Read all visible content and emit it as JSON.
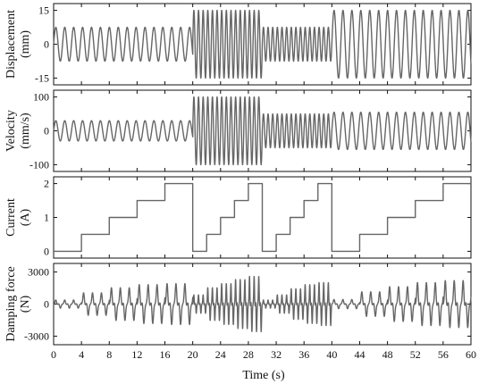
{
  "chart_data": {
    "type": "line",
    "xlabel": "Time (s)",
    "xlim": [
      0,
      60
    ],
    "x_ticks": [
      0,
      4,
      8,
      12,
      16,
      20,
      24,
      28,
      32,
      36,
      40,
      44,
      48,
      52,
      56,
      60
    ],
    "panels": [
      {
        "ylabel_line1": "Displacement",
        "ylabel_line2": "(mm)",
        "ylim": [
          -18,
          18
        ],
        "y_ticks": [
          -15,
          0,
          15
        ],
        "series": [
          {
            "segments": [
              {
                "t": [
                  0,
                  20
                ],
                "freq_hz": 0.78,
                "amp": 7.5
              },
              {
                "t": [
                  20,
                  30
                ],
                "freq_hz": 1.5,
                "amp": 15
              },
              {
                "t": [
                  30,
                  38
                ],
                "freq_hz": 1.5,
                "amp": 7.5
              },
              {
                "t": [
                  38,
                  40
                ],
                "freq_hz": 1.5,
                "amp": 7.5
              },
              {
                "t": [
                  40,
                  60
                ],
                "freq_hz": 0.78,
                "amp": 15
              }
            ]
          }
        ]
      },
      {
        "ylabel_line1": "Velocity",
        "ylabel_line2": "(mm/s)",
        "ylim": [
          -120,
          120
        ],
        "y_ticks": [
          -100,
          0,
          100
        ],
        "series": [
          {
            "segments": [
              {
                "t": [
                  0,
                  20
                ],
                "freq_hz": 0.78,
                "amp": 30
              },
              {
                "t": [
                  20,
                  30
                ],
                "freq_hz": 1.5,
                "amp": 100
              },
              {
                "t": [
                  30,
                  40
                ],
                "freq_hz": 1.5,
                "amp": 50
              },
              {
                "t": [
                  40,
                  60
                ],
                "freq_hz": 0.78,
                "amp": 55
              }
            ]
          }
        ]
      },
      {
        "ylabel_line1": "Current",
        "ylabel_line2": "(A)",
        "ylim": [
          -0.2,
          2.2
        ],
        "y_ticks": [
          0,
          1,
          2
        ],
        "series": [
          {
            "steps": [
              {
                "t": [
                  0,
                  4
                ],
                "value": 0
              },
              {
                "t": [
                  4,
                  8
                ],
                "value": 0.5
              },
              {
                "t": [
                  8,
                  12
                ],
                "value": 1
              },
              {
                "t": [
                  12,
                  16
                ],
                "value": 1.5
              },
              {
                "t": [
                  16,
                  20
                ],
                "value": 2
              },
              {
                "t": [
                  20,
                  22
                ],
                "value": 0
              },
              {
                "t": [
                  22,
                  24
                ],
                "value": 0.5
              },
              {
                "t": [
                  24,
                  26
                ],
                "value": 1
              },
              {
                "t": [
                  26,
                  28
                ],
                "value": 1.5
              },
              {
                "t": [
                  28,
                  30
                ],
                "value": 2
              },
              {
                "t": [
                  30,
                  32
                ],
                "value": 0
              },
              {
                "t": [
                  32,
                  34
                ],
                "value": 0.5
              },
              {
                "t": [
                  34,
                  36
                ],
                "value": 1
              },
              {
                "t": [
                  36,
                  38
                ],
                "value": 1.5
              },
              {
                "t": [
                  38,
                  40
                ],
                "value": 2
              },
              {
                "t": [
                  40,
                  44
                ],
                "value": 0
              },
              {
                "t": [
                  44,
                  48
                ],
                "value": 0.5
              },
              {
                "t": [
                  48,
                  52
                ],
                "value": 1
              },
              {
                "t": [
                  52,
                  56
                ],
                "value": 1.5
              },
              {
                "t": [
                  56,
                  60
                ],
                "value": 2
              }
            ]
          }
        ]
      },
      {
        "ylabel_line1": "Damping force",
        "ylabel_line2": "(N)",
        "ylim": [
          -3800,
          3800
        ],
        "y_ticks": [
          -3000,
          0,
          3000
        ],
        "series": [
          {
            "force_peaks": [
              {
                "t": [
                  0,
                  4
                ],
                "freq_hz": 0.78,
                "peak": 400
              },
              {
                "t": [
                  4,
                  8
                ],
                "freq_hz": 0.78,
                "peak": 1100
              },
              {
                "t": [
                  8,
                  12
                ],
                "freq_hz": 0.78,
                "peak": 1600
              },
              {
                "t": [
                  12,
                  16
                ],
                "freq_hz": 0.78,
                "peak": 1900
              },
              {
                "t": [
                  16,
                  20
                ],
                "freq_hz": 0.78,
                "peak": 2000
              },
              {
                "t": [
                  20,
                  22
                ],
                "freq_hz": 1.5,
                "peak": 900
              },
              {
                "t": [
                  22,
                  24
                ],
                "freq_hz": 1.5,
                "peak": 1600
              },
              {
                "t": [
                  24,
                  26
                ],
                "freq_hz": 1.5,
                "peak": 2000
              },
              {
                "t": [
                  26,
                  28
                ],
                "freq_hz": 1.5,
                "peak": 2400
              },
              {
                "t": [
                  28,
                  30
                ],
                "freq_hz": 1.5,
                "peak": 2700
              },
              {
                "t": [
                  30,
                  32
                ],
                "freq_hz": 1.5,
                "peak": 400
              },
              {
                "t": [
                  32,
                  34
                ],
                "freq_hz": 1.5,
                "peak": 900
              },
              {
                "t": [
                  34,
                  36
                ],
                "freq_hz": 1.5,
                "peak": 1500
              },
              {
                "t": [
                  36,
                  38
                ],
                "freq_hz": 1.5,
                "peak": 1900
              },
              {
                "t": [
                  38,
                  40
                ],
                "freq_hz": 1.5,
                "peak": 2100
              },
              {
                "t": [
                  40,
                  44
                ],
                "freq_hz": 0.78,
                "peak": 450
              },
              {
                "t": [
                  44,
                  48
                ],
                "freq_hz": 0.78,
                "peak": 1200
              },
              {
                "t": [
                  48,
                  52
                ],
                "freq_hz": 0.78,
                "peak": 1700
              },
              {
                "t": [
                  52,
                  56
                ],
                "freq_hz": 0.78,
                "peak": 2100
              },
              {
                "t": [
                  56,
                  60
                ],
                "freq_hz": 0.78,
                "peak": 2300
              }
            ]
          }
        ]
      }
    ],
    "grid": false,
    "colors": {
      "trace": "#666666",
      "axes": "#111111"
    }
  }
}
